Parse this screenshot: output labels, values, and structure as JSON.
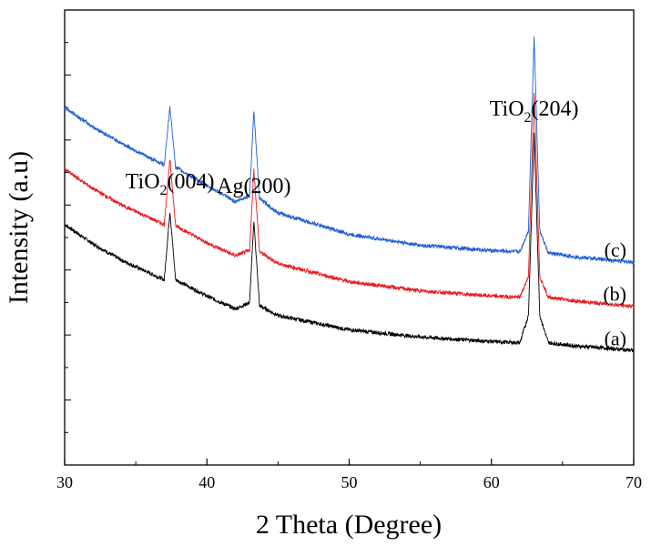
{
  "chart_data": {
    "type": "line",
    "xlabel": "2 Theta (Degree)",
    "ylabel": "Intensity (a.u)",
    "xlim": [
      30,
      70
    ],
    "xticks": [
      30,
      40,
      50,
      60,
      70
    ],
    "grid": false,
    "legend": "none",
    "peaks": [
      {
        "label_main": "TiO",
        "label_sub": "2",
        "label_tail": "(004)",
        "x": 37.4
      },
      {
        "label_main": "Ag(200)",
        "label_sub": "",
        "label_tail": "",
        "x": 43.3
      },
      {
        "label_main": "TiO",
        "label_sub": "2",
        "label_tail": "(204)",
        "x": 63.0
      }
    ],
    "series": [
      {
        "name": "(a)",
        "color": "#000000",
        "x": [
          30,
          32,
          34,
          36,
          37,
          37.4,
          37.8,
          40,
          42,
          43,
          43.3,
          43.7,
          45,
          50,
          55,
          60,
          62,
          62.6,
          63.0,
          63.4,
          64,
          66,
          68,
          70
        ],
        "y": [
          3.7,
          3.4,
          3.15,
          2.95,
          2.85,
          3.9,
          2.85,
          2.6,
          2.4,
          2.5,
          3.75,
          2.45,
          2.3,
          2.08,
          1.97,
          1.9,
          1.88,
          2.3,
          5.1,
          2.3,
          1.88,
          1.83,
          1.8,
          1.76
        ]
      },
      {
        "name": "(b)",
        "color": "#e8191c",
        "x": [
          30,
          32,
          34,
          36,
          37,
          37.4,
          37.8,
          40,
          42,
          43,
          43.3,
          43.7,
          45,
          50,
          55,
          60,
          62,
          62.6,
          63.0,
          63.4,
          64,
          66,
          68,
          70
        ],
        "y": [
          4.55,
          4.25,
          4.0,
          3.8,
          3.7,
          4.7,
          3.68,
          3.42,
          3.22,
          3.3,
          4.55,
          3.28,
          3.1,
          2.82,
          2.68,
          2.6,
          2.58,
          2.9,
          5.75,
          2.9,
          2.58,
          2.52,
          2.48,
          2.44
        ]
      },
      {
        "name": "(c)",
        "color": "#1f5fd4",
        "x": [
          30,
          32,
          34,
          36,
          37,
          37.4,
          37.8,
          40,
          42,
          43,
          43.3,
          43.7,
          45,
          50,
          55,
          60,
          62,
          62.6,
          63.0,
          63.4,
          64,
          66,
          68,
          70
        ],
        "y": [
          5.5,
          5.2,
          4.95,
          4.72,
          4.62,
          5.5,
          4.58,
          4.3,
          4.05,
          4.15,
          5.45,
          4.1,
          3.88,
          3.55,
          3.38,
          3.3,
          3.28,
          3.6,
          6.6,
          3.6,
          3.26,
          3.2,
          3.16,
          3.12
        ]
      }
    ]
  }
}
